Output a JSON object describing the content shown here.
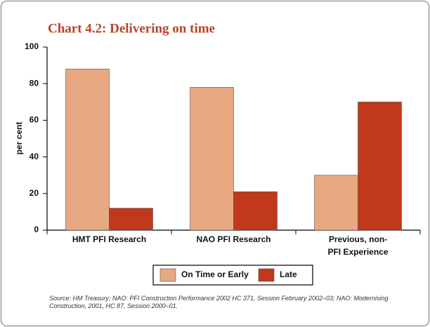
{
  "chart_data": {
    "type": "bar",
    "title": "Chart 4.2: Delivering on time",
    "y_label": "per cent",
    "categories": [
      "HMT PFI Research",
      "NAO PFI Research",
      "Previous, non-\nPFI Experience"
    ],
    "series": [
      {
        "name": "On Time or Early",
        "color": "#e8a882",
        "values": [
          88,
          78,
          30
        ]
      },
      {
        "name": "Late",
        "color": "#c0391b",
        "values": [
          12,
          21,
          70
        ]
      }
    ],
    "ylim": [
      0,
      100
    ],
    "yticks": [
      0,
      20,
      40,
      60,
      80,
      100
    ],
    "grid": false,
    "legend": "bottom",
    "source": "Source: HM Treasury; NAO: PFI Construction Performance 2002 HC 371, Session February 2002–03; NAO: Modernising Construction, 2001, HC 87, Session 2000–01."
  }
}
